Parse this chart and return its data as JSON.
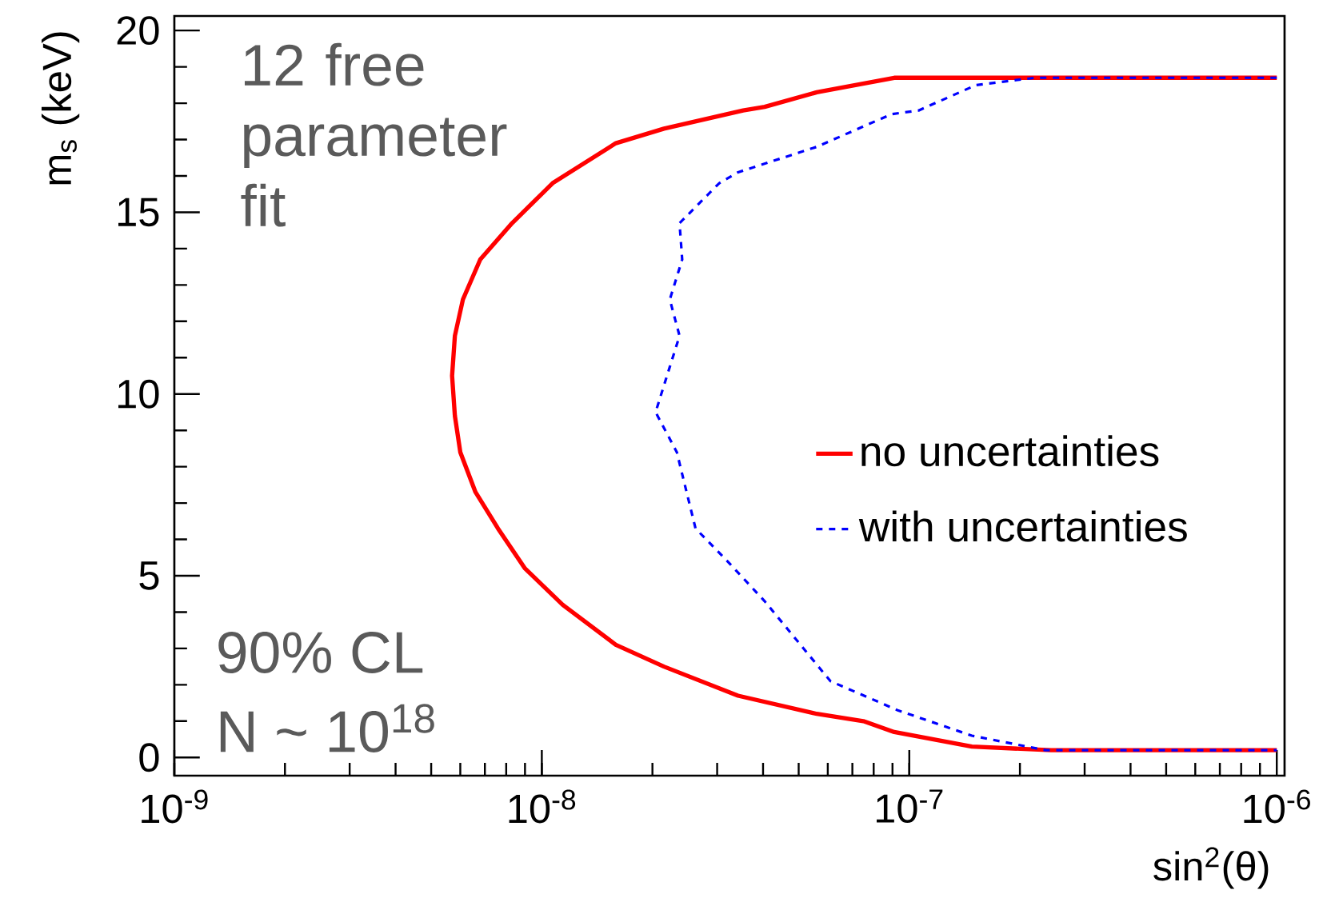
{
  "chart_data": {
    "type": "line",
    "xlabel": "sin$^{2}$(θ)",
    "ylabel": "m$_{s}$ (keV)",
    "log": "x",
    "xlim": [
      1e-09,
      1.05e-06
    ],
    "ylim": [
      -0.5,
      20.4
    ],
    "xticks": [
      {
        "value": 1e-09,
        "label": "10$^{-9}$"
      },
      {
        "value": 1e-08,
        "label": "10$^{-8}$"
      },
      {
        "value": 1e-07,
        "label": "10$^{-7}$"
      },
      {
        "value": 1e-06,
        "label": "10$^{-6}$"
      }
    ],
    "yticks": [
      0,
      5,
      10,
      15,
      20
    ],
    "legend": "right",
    "annotations": [
      "12 free parameter fit",
      "90% CL",
      "N ~ 10$^{18}$"
    ],
    "series": [
      {
        "name": "no uncertainties",
        "color": "#ff0000",
        "line_style": "solid",
        "x": [
          1e-06,
          9.1e-08,
          5.6e-08,
          4.04e-08,
          3.53e-08,
          2.15e-08,
          1.59e-08,
          1.07e-08,
          8.3e-09,
          6.8e-09,
          6.1e-09,
          5.8e-09,
          5.7e-09,
          5.8e-09,
          6e-09,
          6.6e-09,
          7.6e-09,
          9e-09,
          1.14e-08,
          1.59e-08,
          2.15e-08,
          3.42e-08,
          5.6e-08,
          7.5e-08,
          9.1e-08,
          1.48e-07,
          2.43e-07,
          1e-06
        ],
        "values": [
          18.7,
          18.7,
          18.3,
          17.9,
          17.8,
          17.3,
          16.9,
          15.8,
          14.7,
          13.7,
          12.6,
          11.6,
          10.5,
          9.4,
          8.4,
          7.3,
          6.3,
          5.2,
          4.2,
          3.1,
          2.5,
          1.7,
          1.2,
          1.0,
          0.7,
          0.3,
          0.2,
          0.2
        ]
      },
      {
        "name": "with uncertainties",
        "color": "#0000ff",
        "line_style": "dashed",
        "x": [
          1e-06,
          2.2e-07,
          1.52e-07,
          1.06e-07,
          8.95e-08,
          5.6e-08,
          3.42e-08,
          3.04e-08,
          2.37e-08,
          2.41e-08,
          2.23e-08,
          2.37e-08,
          2.04e-08,
          2.33e-08,
          2.62e-08,
          3.2e-08,
          4.04e-08,
          6.1e-08,
          9.3e-08,
          1.48e-07,
          2.35e-07,
          1e-06
        ],
        "values": [
          18.7,
          18.7,
          18.5,
          17.8,
          17.7,
          16.8,
          16.1,
          15.8,
          14.7,
          13.7,
          12.6,
          11.6,
          9.5,
          8.4,
          6.3,
          5.4,
          4.3,
          2.1,
          1.3,
          0.6,
          0.2,
          0.2
        ]
      }
    ]
  }
}
